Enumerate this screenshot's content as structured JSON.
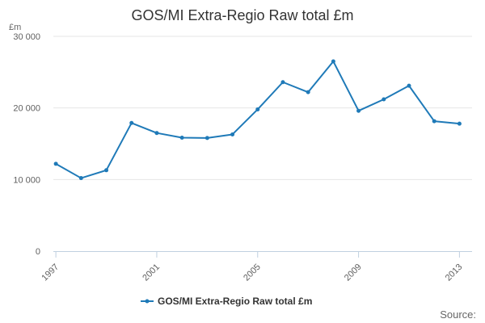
{
  "chart_data": {
    "type": "line",
    "title": "GOS/MI Extra-Regio Raw total £m",
    "unit_label": "£m",
    "x": [
      1997,
      1998,
      1999,
      2000,
      2001,
      2002,
      2003,
      2004,
      2005,
      2006,
      2007,
      2008,
      2009,
      2010,
      2011,
      2012,
      2013
    ],
    "x_tick_labels": [
      "1997",
      "2001",
      "2005",
      "2009",
      "2013"
    ],
    "x_tick_values": [
      1997,
      2001,
      2005,
      2009,
      2013
    ],
    "xlim": [
      1996.9,
      2013.5
    ],
    "series": [
      {
        "name": "GOS/MI Extra-Regio Raw total £m",
        "color": "#1f7ab8",
        "values": [
          12200,
          10200,
          11300,
          17900,
          16500,
          15850,
          15800,
          16300,
          19800,
          23600,
          22200,
          26500,
          19600,
          21200,
          23100,
          18150,
          17800
        ]
      }
    ],
    "y_tick_labels": [
      "0",
      "10 000",
      "20 000",
      "30 000"
    ],
    "y_tick_values": [
      0,
      10000,
      20000,
      30000
    ],
    "ylim": [
      0,
      30000
    ],
    "grid": true,
    "legend_position": "bottom-center",
    "source_label": "Source:"
  }
}
